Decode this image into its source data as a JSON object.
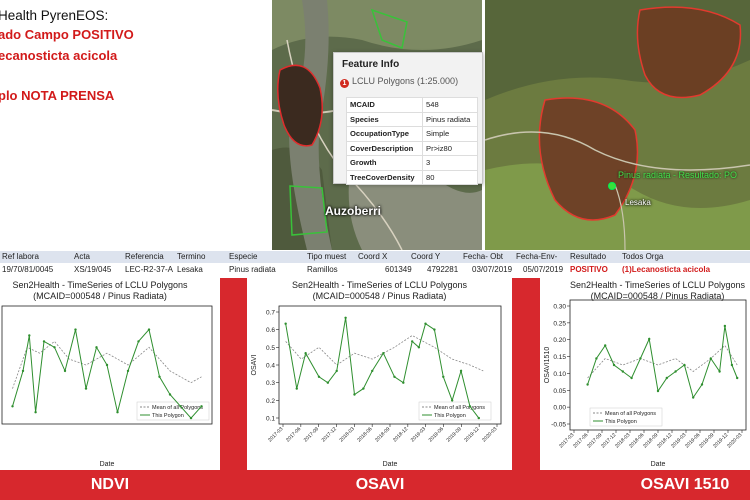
{
  "slide": {
    "line1": "Health PyrenEOS:",
    "line2": "ado Campo POSITIVO",
    "line3": "ecanosticta acicola",
    "line4": "plo NOTA PRENSA"
  },
  "map_left": {
    "place_label": "Auzoberri"
  },
  "map_right": {
    "marker_label": "Pinus radiata - Resultado: PO",
    "place_label": "Lesaka"
  },
  "feature_info": {
    "header": "Feature Info",
    "layer_badge": "1",
    "layer": "LCLU Polygons (1:25.000)",
    "rows": [
      {
        "key": "MCAID",
        "value": "548"
      },
      {
        "key": "Species",
        "value": "Pinus radiata"
      },
      {
        "key": "OccupationType",
        "value": "Simple"
      },
      {
        "key": "CoverDescription",
        "value": "Pr>iz80"
      },
      {
        "key": "Growth",
        "value": "3"
      },
      {
        "key": "TreeCoverDensity",
        "value": "80"
      }
    ]
  },
  "record_table": {
    "headers": [
      "Ref labora",
      "Acta",
      "Referencia",
      "Termino",
      "Especie",
      "Tipo muest",
      "Coord X",
      "Coord Y",
      "Fecha- Obt",
      "Fecha-Env-",
      "Resultado",
      "Todos Orga"
    ],
    "values": [
      "19/70/81/0045",
      "XS/19/045",
      "LEC-R2-37-A",
      "Lesaka",
      "Pinus radiata",
      "Ramillos",
      "601349",
      "4792281",
      "03/07/2019",
      "05/07/2019",
      "POSITIVO",
      "(1)Lecanosticta acicola"
    ]
  },
  "colors": {
    "stage_red": "#d7282d",
    "positive_red": "#d21a1a",
    "polygon_green": "#2f8f2f"
  },
  "plots": [
    {
      "label": "NDVI",
      "title": "Sen2Health - TimeSeries of LCLU Polygons",
      "subtitle": "(MCAID=000548 / Pinus Radiata)",
      "ylabel": "",
      "xlabel": "Date",
      "legend": [
        "Mean of all Polygons",
        "This Polygon"
      ],
      "yticks": [],
      "xticks": []
    },
    {
      "label": "OSAVI",
      "title": "Sen2Health - TimeSeries of LCLU Polygons",
      "subtitle": "(MCAID=000548 / Pinus Radiata)",
      "ylabel": "OSAVI",
      "xlabel": "Date",
      "legend": [
        "Mean of all Polygons",
        "This Polygon"
      ],
      "yticks": [
        "0.7",
        "0.6",
        "0.5",
        "0.4",
        "0.3",
        "0.2",
        "0.1"
      ],
      "xticks": [
        "2017-03",
        "2017-06",
        "2017-09",
        "2017-12",
        "2018-03",
        "2018-06",
        "2018-09",
        "2018-12",
        "2019-03",
        "2019-06",
        "2019-09",
        "2019-12",
        "2020-03"
      ]
    },
    {
      "label": "OSAVI 1510",
      "title": "Sen2Health - TimeSeries of LCLU Polygons",
      "subtitle": "(MCAID=000548 / Pinus Radiata)",
      "ylabel": "OSAVI1510",
      "xlabel": "Date",
      "legend": [
        "Mean of all Polygons",
        "This Polygon"
      ],
      "yticks": [
        "0.30",
        "0.25",
        "0.20",
        "0.15",
        "0.10",
        "0.05",
        "0.00",
        "-0.05"
      ],
      "xticks": [
        "2017-03",
        "2017-06",
        "2017-09",
        "2017-12",
        "2018-03",
        "2018-06",
        "2018-09",
        "2018-12",
        "2019-03",
        "2019-06",
        "2019-09",
        "2019-12",
        "2020-03"
      ]
    }
  ]
}
